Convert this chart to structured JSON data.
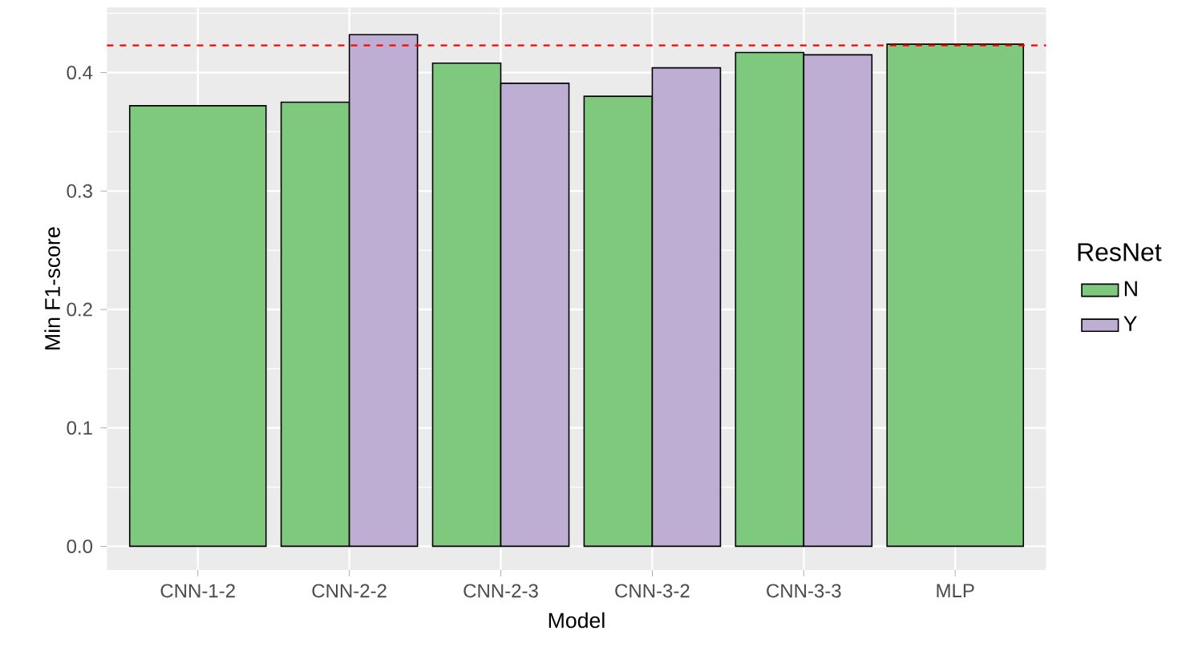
{
  "chart_data": {
    "type": "bar",
    "xlabel": "Model",
    "ylabel": "Min F1-score",
    "legend_title": "ResNet",
    "categories": [
      "CNN-1-2",
      "CNN-2-2",
      "CNN-2-3",
      "CNN-3-2",
      "CNN-3-3",
      "MLP"
    ],
    "series": [
      {
        "name": "N",
        "color": "#7fc97f",
        "values": [
          0.372,
          0.375,
          0.408,
          0.38,
          0.417,
          0.424
        ]
      },
      {
        "name": "Y",
        "color": "#beaed4",
        "values": [
          null,
          0.432,
          0.391,
          0.404,
          0.415,
          null
        ]
      }
    ],
    "ylim": [
      -0.02,
      0.455
    ],
    "yticks": [
      {
        "value": 0,
        "label": "0.0"
      },
      0.1,
      0.2,
      0.3,
      0.4
    ],
    "ref_lines": [
      {
        "axis": "y",
        "value": 0.423,
        "color": "#ff0000",
        "line_style": "dashed"
      }
    ],
    "grid": true,
    "legend": "right"
  }
}
